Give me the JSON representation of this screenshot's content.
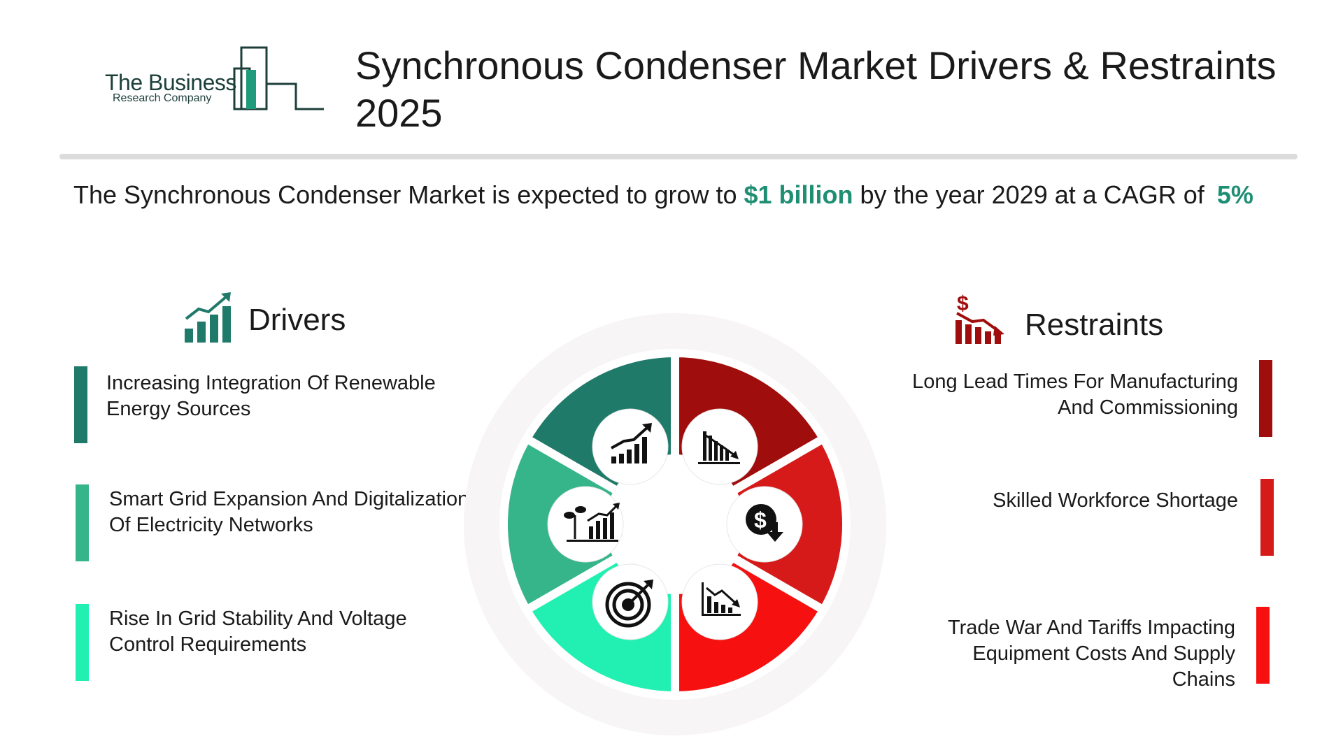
{
  "logo": {
    "line1": "The Business",
    "line2": "Research Company"
  },
  "title": "Synchronous Condenser Market Drivers & Restraints 2025",
  "summary": {
    "prefix": "The Synchronous Condenser Market is expected to grow to ",
    "value": "$1 billion",
    "middle": " by the year 2029 at a CAGR of ",
    "cagr": "5%"
  },
  "drivers": {
    "heading": "Drivers",
    "items": [
      {
        "text": "Increasing Integration Of Renewable Energy Sources",
        "color": "#1f7a6a"
      },
      {
        "text": "Smart Grid Expansion And Digitalization Of Electricity Networks",
        "color": "#37b58a"
      },
      {
        "text": "Rise In Grid Stability And Voltage Control Requirements",
        "color": "#22f0b2"
      }
    ]
  },
  "restraints": {
    "heading": "Restraints",
    "items": [
      {
        "text": "Long Lead Times For Manufacturing And Commissioning",
        "color": "#a00d0d"
      },
      {
        "text": "Skilled Workforce Shortage",
        "color": "#d61a1a"
      },
      {
        "text": "Trade War And Tariffs Impacting Equipment Costs And Supply Chains",
        "color": "#f71010"
      }
    ]
  },
  "icons": {
    "drivers_heading": "growth-chart-icon",
    "restraints_heading": "decline-dollar-chart-icon",
    "wheel": [
      "growth-chart-icon",
      "plant-growth-chart-icon",
      "target-icon",
      "decline-bar-chart-icon",
      "dollar-down-icon",
      "downtrend-chart-icon"
    ]
  },
  "colors": {
    "accent": "#1f8f74"
  }
}
